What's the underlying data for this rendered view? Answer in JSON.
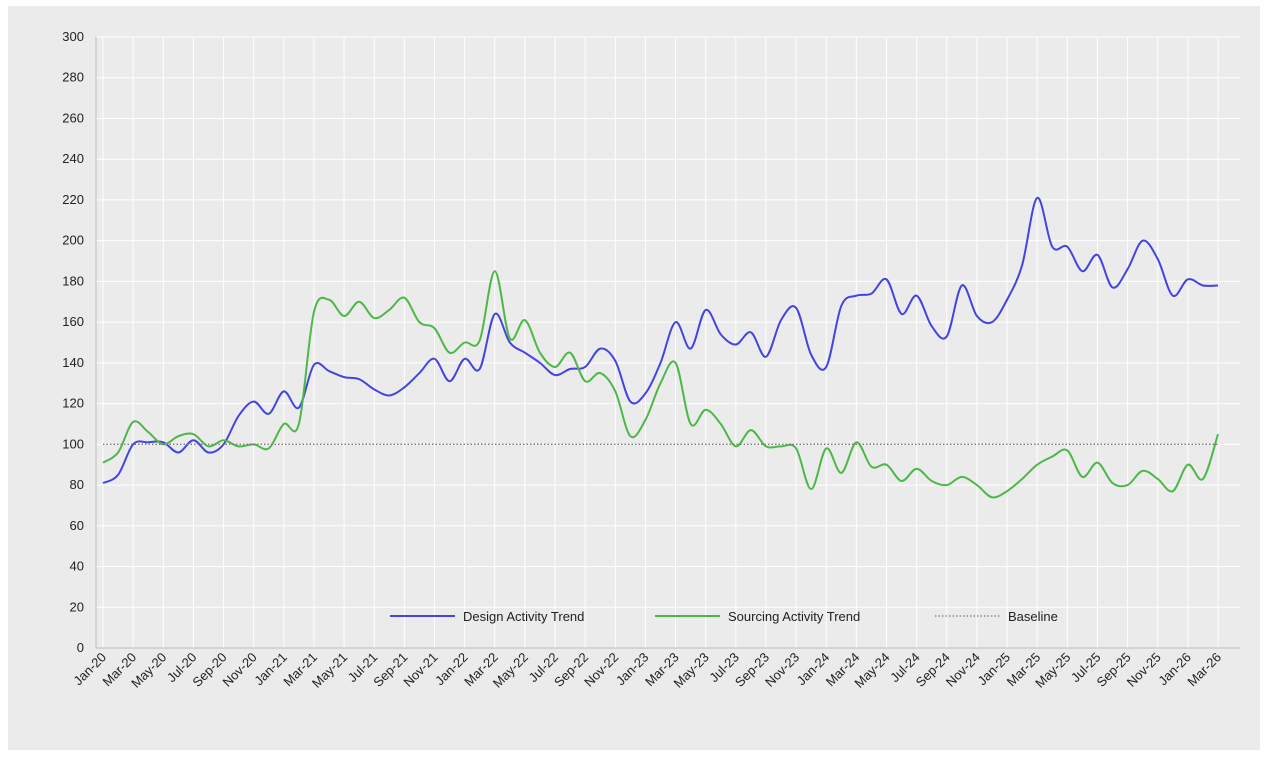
{
  "chart_data": {
    "type": "line",
    "categories": [
      "Jan-20",
      null,
      "Mar-20",
      null,
      "May-20",
      null,
      "Jul-20",
      null,
      "Sep-20",
      null,
      "Nov-20",
      null,
      "Jan-21",
      null,
      "Mar-21",
      null,
      "May-21",
      null,
      "Jul-21",
      null,
      "Sep-21",
      null,
      "Nov-21",
      null,
      "Jan-22",
      null,
      "Mar-22",
      null,
      "May-22",
      null,
      "Jul-22",
      null,
      "Sep-22",
      null,
      "Nov-22",
      null,
      "Jan-23",
      null,
      "Mar-23",
      null,
      "May-23",
      null,
      "Jul-23",
      null,
      "Sep-23",
      null,
      "Nov-23",
      null,
      "Jan-24",
      null,
      "Mar-24",
      null,
      "May-24",
      null,
      "Jul-24",
      null,
      "Sep-24",
      null,
      "Nov-24",
      null,
      "Jan-25",
      null,
      "Mar-25",
      null,
      "May-25",
      null,
      "Jul-25",
      null,
      "Sep-25",
      null,
      "Nov-25",
      null,
      "Jan-26",
      null,
      "Mar-26"
    ],
    "series": [
      {
        "name": "Design Activity Trend",
        "color": "#4444e0",
        "style": "solid",
        "values": [
          81,
          85,
          100,
          101,
          101,
          96,
          102,
          96,
          100,
          114,
          121,
          115,
          126,
          118,
          139,
          136,
          133,
          132,
          127,
          124,
          128,
          135,
          142,
          131,
          142,
          137,
          164,
          150,
          145,
          140,
          134,
          137,
          138,
          147,
          141,
          121,
          125,
          140,
          160,
          147,
          166,
          154,
          149,
          155,
          143,
          161,
          167,
          144,
          138,
          168,
          173,
          174,
          181,
          164,
          173,
          158,
          153,
          178,
          163,
          160,
          171,
          188,
          221,
          197,
          197,
          185,
          193,
          177,
          186,
          200,
          191,
          173,
          181,
          178,
          178
        ]
      },
      {
        "name": "Sourcing Activity Trend",
        "color": "#4db848",
        "style": "solid",
        "values": [
          91,
          96,
          111,
          106,
          100,
          104,
          105,
          99,
          102,
          99,
          100,
          98,
          110,
          110,
          165,
          171,
          163,
          170,
          162,
          166,
          172,
          160,
          157,
          145,
          150,
          151,
          185,
          152,
          161,
          145,
          138,
          145,
          131,
          135,
          126,
          104,
          112,
          130,
          140,
          110,
          117,
          110,
          99,
          107,
          99,
          99,
          98,
          78,
          98,
          86,
          101,
          89,
          90,
          82,
          88,
          82,
          80,
          84,
          80,
          74,
          77,
          83,
          90,
          94,
          97,
          84,
          91,
          81,
          80,
          87,
          83,
          77,
          90,
          83,
          105
        ]
      },
      {
        "name": "Baseline",
        "color": "#777777",
        "style": "dotted",
        "values": [
          100,
          100,
          100,
          100,
          100,
          100,
          100,
          100,
          100,
          100,
          100,
          100,
          100,
          100,
          100,
          100,
          100,
          100,
          100,
          100,
          100,
          100,
          100,
          100,
          100,
          100,
          100,
          100,
          100,
          100,
          100,
          100,
          100,
          100,
          100,
          100,
          100,
          100,
          100,
          100,
          100,
          100,
          100,
          100,
          100,
          100,
          100,
          100,
          100,
          100,
          100,
          100,
          100,
          100,
          100,
          100,
          100,
          100,
          100,
          100,
          100,
          100,
          100,
          100,
          100,
          100,
          100,
          100,
          100,
          100,
          100,
          100,
          100,
          100,
          100
        ]
      }
    ],
    "ylim": [
      0,
      300
    ],
    "yticks": [
      0,
      20,
      40,
      60,
      80,
      100,
      120,
      140,
      160,
      180,
      200,
      220,
      240,
      260,
      280,
      300
    ],
    "grid": true,
    "legend": "bottom"
  }
}
